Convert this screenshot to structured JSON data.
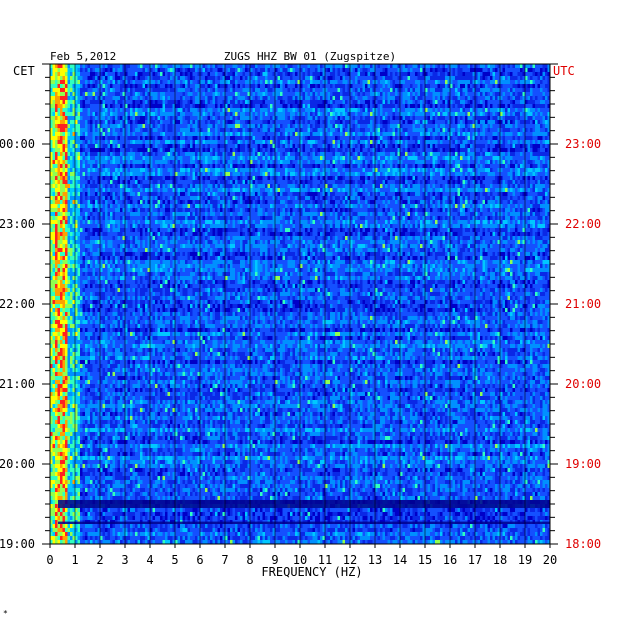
{
  "chart_data": {
    "type": "heatmap",
    "title": "ZUGS HHZ BW 01 (Zugspitze)",
    "date": "Feb 5,2012",
    "left_timezone": "CET",
    "right_timezone": "UTC",
    "xlabel": "FREQUENCY (HZ)",
    "xlim": [
      0,
      20
    ],
    "x_ticks": [
      "0",
      "1",
      "2",
      "3",
      "4",
      "5",
      "6",
      "7",
      "8",
      "9",
      "10",
      "11",
      "12",
      "13",
      "14",
      "15",
      "16",
      "17",
      "18",
      "19",
      "20"
    ],
    "left_time_ticks": [
      {
        "label": "00:00",
        "hours_from_bottom": 5
      },
      {
        "label": "23:00",
        "hours_from_bottom": 4
      },
      {
        "label": "22:00",
        "hours_from_bottom": 3
      },
      {
        "label": "21:00",
        "hours_from_bottom": 2
      },
      {
        "label": "20:00",
        "hours_from_bottom": 1
      },
      {
        "label": "19:00",
        "hours_from_bottom": 0
      }
    ],
    "right_time_ticks": [
      {
        "label": "23:00",
        "hours_from_bottom": 5
      },
      {
        "label": "22:00",
        "hours_from_bottom": 4
      },
      {
        "label": "21:00",
        "hours_from_bottom": 3
      },
      {
        "label": "20:00",
        "hours_from_bottom": 2
      },
      {
        "label": "19:00",
        "hours_from_bottom": 1
      },
      {
        "label": "18:00",
        "hours_from_bottom": 0
      }
    ],
    "time_span_hours": 6,
    "colors": {
      "background": "#0000c8",
      "low": "#0a28e6",
      "mid": "#00c8ff",
      "high": "#ffff00",
      "peak": "#ff2020",
      "utc_text": "#e00000",
      "text": "#000000"
    }
  },
  "footnote": "*"
}
